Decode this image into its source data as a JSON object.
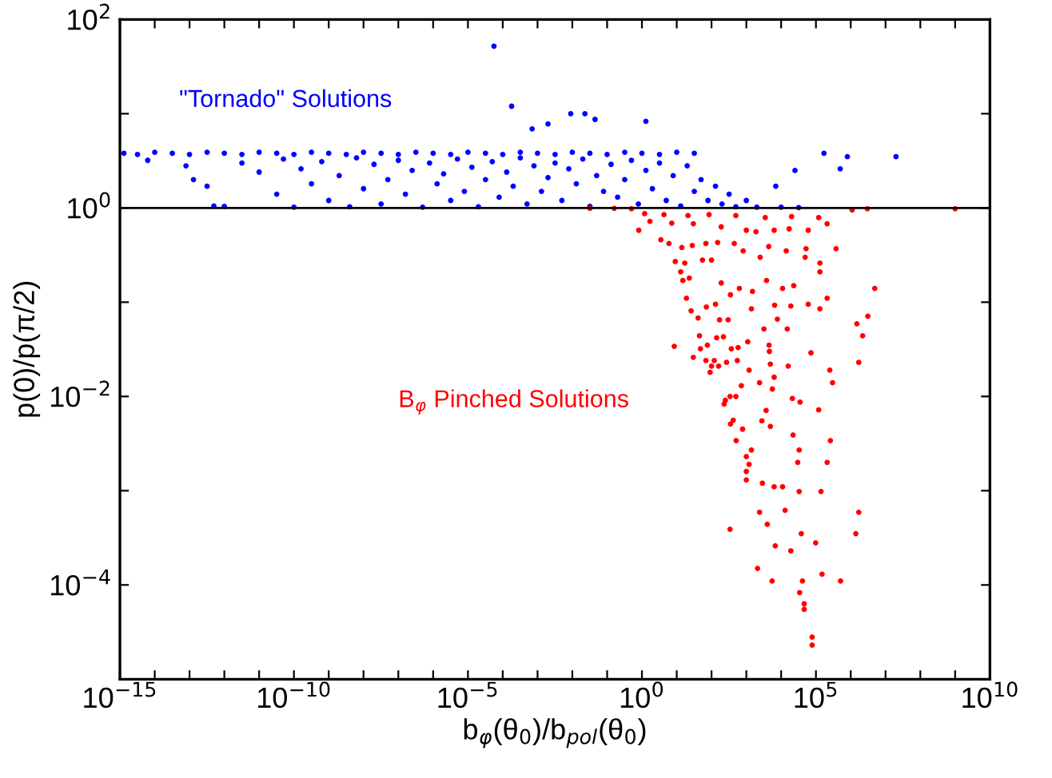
{
  "chart_data": {
    "type": "scatter",
    "xlabel": "b$_{φ}$(θ$_{0}$)/b$_{pol}$(θ$_{0}$)",
    "ylabel": "p(0)/p(π/2)",
    "annotations": [
      "\"Tornado\" Solutions",
      "B$_{φ}$ Pinched Solutions"
    ],
    "log": "xy",
    "grid": false,
    "legend": false,
    "marker": "circle",
    "xlim": [
      1e-15,
      10000000000.0
    ],
    "xticks": [
      {
        "value": 1e-15,
        "label": "10$^{−15}$"
      },
      {
        "value": 1e-14,
        "label": null
      },
      {
        "value": 1e-13,
        "label": null
      },
      {
        "value": 1e-12,
        "label": null
      },
      {
        "value": 1e-11,
        "label": null
      },
      {
        "value": 1e-10,
        "label": "10$^{−10}$"
      },
      {
        "value": 1e-09,
        "label": null
      },
      {
        "value": 1e-08,
        "label": null
      },
      {
        "value": 1e-07,
        "label": null
      },
      {
        "value": 1e-06,
        "label": null
      },
      {
        "value": 1e-05,
        "label": "10$^{−5}$"
      },
      {
        "value": 0.0001,
        "label": null
      },
      {
        "value": 0.001,
        "label": null
      },
      {
        "value": 0.01,
        "label": null
      },
      {
        "value": 0.1,
        "label": null
      },
      {
        "value": 1,
        "label": "10$^{0}$"
      },
      {
        "value": 10,
        "label": null
      },
      {
        "value": 100,
        "label": null
      },
      {
        "value": 1000,
        "label": null
      },
      {
        "value": 10000,
        "label": null
      },
      {
        "value": 100000,
        "label": "10$^{5}$"
      },
      {
        "value": 1000000.0,
        "label": null
      },
      {
        "value": 10000000.0,
        "label": null
      },
      {
        "value": 100000000.0,
        "label": null
      },
      {
        "value": 1000000000.0,
        "label": null
      },
      {
        "value": 10000000000.0,
        "label": "10$^{10}$"
      }
    ],
    "ylim": [
      1e-05,
      100
    ],
    "yticks": [
      {
        "value": 1e-05,
        "label": null
      },
      {
        "value": 0.0001,
        "label": "10$^{−4}$"
      },
      {
        "value": 0.001,
        "label": null
      },
      {
        "value": 0.01,
        "label": "10$^{−2}$"
      },
      {
        "value": 0.1,
        "label": null
      },
      {
        "value": 1,
        "label": "10$^{0}$"
      },
      {
        "value": 10,
        "label": null
      },
      {
        "value": 100,
        "label": "10$^{2}$"
      }
    ],
    "ref_lines": [
      {
        "axis": "y",
        "value": 1,
        "color": "#000000"
      }
    ],
    "series": [
      {
        "color": "#0000ff",
        "x": [
          1.3e-15,
          3.2e-15,
          1e-14,
          3.2e-14,
          1e-13,
          3.2e-13,
          1e-12,
          3.2e-12,
          1e-11,
          3.2e-11,
          1e-10,
          3.2e-10,
          1e-09,
          3.2e-09,
          1e-08,
          3.2e-08,
          1e-07,
          3.2e-07,
          1e-06,
          3.2e-06,
          1e-05,
          3.2e-05,
          0.0001,
          0.00032,
          0.001,
          0.0032,
          0.01,
          0.032,
          0.1,
          0.32,
          1,
          3.2,
          10,
          32,
          6.3e-15,
          7.9e-14,
          1.3e-13,
          3.2e-13,
          5e-13,
          1e-12,
          3.2e-12,
          1e-11,
          3.2e-11,
          5e-11,
          1e-10,
          1.6e-10,
          3.2e-10,
          6.3e-10,
          1e-09,
          2e-09,
          4e-09,
          6.3e-09,
          1e-08,
          2e-08,
          3.2e-08,
          5e-08,
          1e-07,
          1.6e-07,
          2.5e-07,
          5e-07,
          7.9e-07,
          1.3e-06,
          2e-06,
          3.2e-06,
          5e-06,
          7.9e-06,
          1.3e-05,
          2e-05,
          3.2e-05,
          5e-05,
          7.9e-05,
          0.00013,
          0.0002,
          0.00032,
          0.0005,
          0.00079,
          0.0013,
          0.002,
          0.0032,
          0.005,
          0.0079,
          0.013,
          0.02,
          0.032,
          0.05,
          0.079,
          0.13,
          0.2,
          0.32,
          0.5,
          0.79,
          1.3,
          2.0,
          3.2,
          5.0,
          7.9,
          13,
          20,
          32,
          50,
          79,
          130,
          200,
          320,
          500,
          1000,
          2000,
          10000,
          32000,
          5.6e-05,
          0.00018,
          0.009,
          0.023,
          0.045,
          1.3,
          0.0007,
          0.002,
          20000000.0,
          170000.0,
          800000.0,
          500000.0,
          25000.0,
          7000.0
        ],
        "values": [
          3.8,
          3.7,
          3.9,
          3.8,
          3.7,
          3.9,
          3.8,
          3.7,
          3.9,
          3.8,
          3.7,
          3.9,
          3.8,
          3.7,
          3.9,
          3.8,
          3.7,
          3.9,
          3.8,
          3.7,
          3.9,
          3.8,
          3.7,
          3.9,
          3.8,
          3.7,
          3.9,
          3.8,
          3.7,
          3.9,
          3.8,
          3.7,
          3.9,
          3.8,
          3.2,
          2.8,
          2.0,
          1.7,
          1.05,
          1.04,
          3.0,
          2.4,
          1.4,
          3.3,
          1.02,
          2.6,
          1.8,
          3.1,
          1.2,
          2.2,
          1.03,
          3.4,
          1.6,
          2.9,
          1.1,
          2.0,
          3.2,
          1.4,
          2.5,
          1.02,
          3.0,
          1.8,
          2.3,
          1.2,
          3.3,
          1.5,
          2.7,
          1.03,
          2.0,
          3.1,
          1.3,
          2.4,
          1.7,
          3.4,
          1.1,
          2.8,
          1.5,
          2.1,
          3.0,
          1.2,
          2.6,
          1.8,
          3.3,
          1.04,
          2.2,
          1.5,
          2.9,
          1.3,
          2.0,
          3.2,
          1.1,
          2.5,
          1.6,
          3.0,
          1.2,
          2.2,
          1.05,
          2.8,
          1.5,
          2.0,
          1.2,
          1.7,
          1.1,
          1.4,
          1.03,
          1.2,
          1.02,
          1.02,
          1.01,
          52,
          12,
          10,
          10,
          8.7,
          8.3,
          6.9,
          7.8,
          3.5,
          3.8,
          3.5,
          2.6,
          2.5,
          1.7
        ]
      },
      {
        "color": "#ff0000",
        "x": [
          78000.0,
          78000.0,
          46000.0,
          46000.0,
          34000.0,
          41000.0,
          5500.0,
          2100.0,
          150000.0,
          510000.0,
          19000.0,
          6800.0,
          98000.0,
          340,
          38000.0,
          1400000.0,
          1700000.0,
          2400.0,
          13000.0,
          4000.0,
          33000.0,
          140000.0,
          2900.0,
          6300.0,
          11000.0,
          1000,
          1000,
          1200,
          1000,
          1400,
          210000.0,
          30000.0,
          33000.0,
          260000.0,
          22000.0,
          510,
          780,
          420,
          350,
          4900.0,
          2800.0,
          3700.0,
          120000.0,
          230,
          250,
          340,
          500,
          35000.0,
          21000.0,
          5600.0,
          2400.0,
          720,
          300000.0,
          250000.0,
          6300.0,
          1200,
          91,
          100,
          160,
          69,
          120,
          270,
          550,
          4900.0,
          16000.0,
          1700000.0,
          30,
          8.5,
          48,
          76,
          370,
          580,
          72000.0,
          4600.0,
          4500.0,
          45,
          140,
          220,
          1100,
          2200000.0,
          1500000.0,
          3100000.0,
          3200.0,
          7800.0,
          15000.0,
          26,
          41,
          71,
          130,
          170,
          300,
          1400,
          6500.0,
          19000.0,
          60000.0,
          130000.0,
          210000.0,
          4900000.0,
          19,
          15,
          23,
          13,
          9.1,
          55,
          100,
          17,
          190,
          350,
          630,
          1500,
          3800.0,
          11000.0,
          23000.0,
          130000.0,
          130000.0,
          49000.0,
          2500.0,
          810,
          4400.0,
          14000.0,
          52000.0,
          380000.0,
          3.5,
          6.0,
          14,
          28,
          69,
          150,
          450,
          0.81,
          1.7,
          7.2,
          30,
          190,
          1000,
          1900,
          6300.0,
          17000.0,
          60000.0,
          210000.0,
          1.2,
          4.3,
          21,
          85,
          500,
          3500.0,
          20000.0,
          120000.0,
          1100000.0,
          3000000.0,
          1000000000.0,
          0.032,
          0.16,
          0.5
        ],
        "values": [
          2.3e-05,
          2.8e-05,
          5.5e-05,
          6.3e-05,
          8.3e-05,
          0.00011,
          0.00011,
          0.00015,
          0.00013,
          0.00011,
          0.00023,
          0.00026,
          0.00028,
          0.00039,
          0.00035,
          0.00035,
          0.00059,
          0.00059,
          0.00062,
          0.00044,
          0.00098,
          0.00098,
          0.0012,
          0.0011,
          0.0011,
          0.0013,
          0.0016,
          0.0019,
          0.0023,
          0.0027,
          0.002,
          0.002,
          0.0027,
          0.0034,
          0.0039,
          0.0034,
          0.0045,
          0.0056,
          0.0051,
          0.0048,
          0.0055,
          0.0071,
          0.0072,
          0.0083,
          0.0091,
          0.01,
          0.01,
          0.0087,
          0.0095,
          0.012,
          0.014,
          0.013,
          0.014,
          0.019,
          0.016,
          0.019,
          0.018,
          0.021,
          0.021,
          0.024,
          0.024,
          0.023,
          0.024,
          0.022,
          0.021,
          0.023,
          0.026,
          0.034,
          0.032,
          0.035,
          0.032,
          0.033,
          0.029,
          0.03,
          0.035,
          0.044,
          0.042,
          0.043,
          0.038,
          0.044,
          0.059,
          0.071,
          0.052,
          0.066,
          0.052,
          0.081,
          0.068,
          0.089,
          0.095,
          0.065,
          0.065,
          0.085,
          0.093,
          0.091,
          0.095,
          0.085,
          0.11,
          0.14,
          0.11,
          0.17,
          0.18,
          0.21,
          0.27,
          0.28,
          0.28,
          0.26,
          0.16,
          0.12,
          0.14,
          0.13,
          0.17,
          0.14,
          0.15,
          0.21,
          0.26,
          0.3,
          0.3,
          0.35,
          0.39,
          0.35,
          0.37,
          0.37,
          0.46,
          0.42,
          0.38,
          0.4,
          0.42,
          0.43,
          0.42,
          0.58,
          0.72,
          0.69,
          0.68,
          0.63,
          0.58,
          0.56,
          0.58,
          0.6,
          0.58,
          0.68,
          0.87,
          0.85,
          0.83,
          0.85,
          0.83,
          0.79,
          0.81,
          0.79,
          0.95,
          0.98,
          0.98,
          0.99,
          0.99,
          0.98
        ]
      }
    ]
  }
}
